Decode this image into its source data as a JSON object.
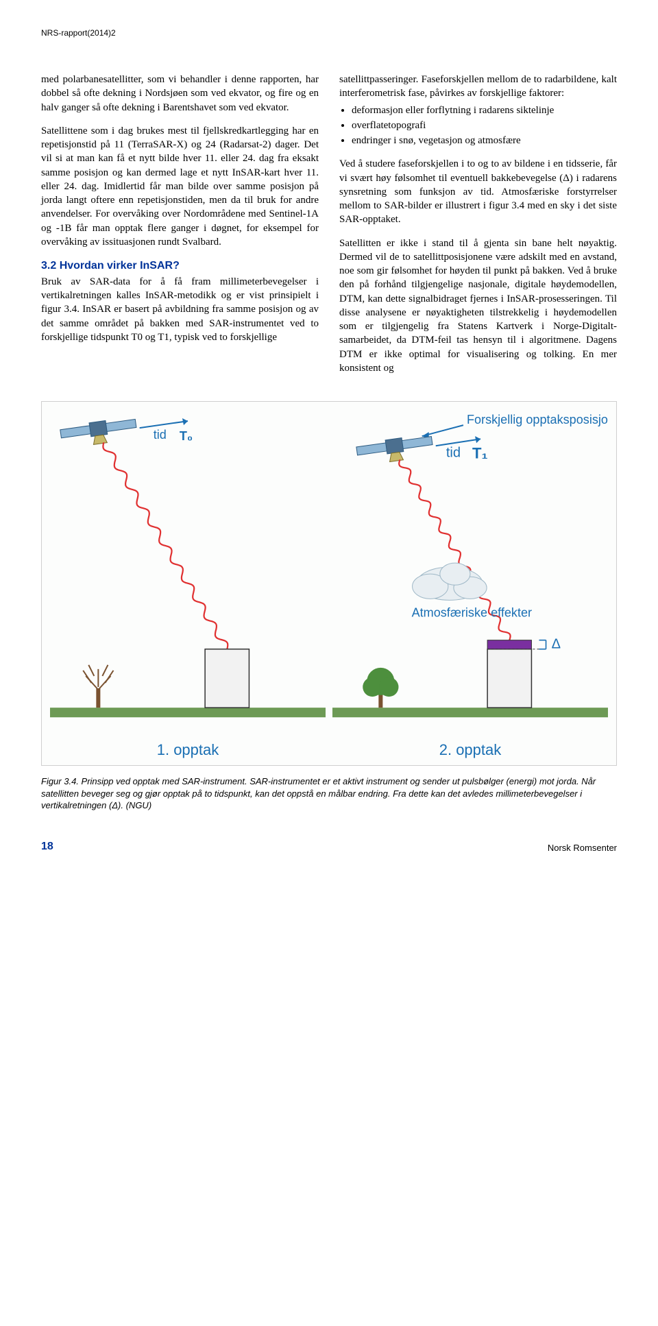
{
  "header": {
    "report_label": "NRS-rapport(2014)2"
  },
  "left_column": {
    "p1": "med polarbanesatellitter, som vi behandler i denne rapporten, har dobbel så ofte dekning i Nordsjøen som ved ekvator, og fire og en halv ganger så ofte dekning i Barentshavet som ved ekvator.",
    "p2": "Satellittene som i dag brukes mest til fjellskredkartlegging har en repetisjonstid på 11 (TerraSAR-X) og 24 (Radarsat-2) dager. Det vil si at man kan få et nytt bilde hver 11. eller 24. dag fra eksakt samme posisjon og kan dermed lage et nytt InSAR-kart hver 11. eller 24. dag. Imidlertid får man bilde over samme posisjon på jorda langt oftere enn repetisjonstiden, men da til bruk for andre anvendelser. For overvåking over Nordområdene med Sentinel-1A og -1B får man opptak flere ganger i døgnet, for eksempel for overvåking av issituasjonen rundt Svalbard.",
    "h1": "3.2 Hvordan virker InSAR?",
    "p3": "Bruk av SAR-data for å få fram millimeterbevegelser i vertikalretningen kalles InSAR-metodikk og er vist prinsipielt i figur 3.4. InSAR er basert på avbildning fra samme posisjon og av det samme området på bakken med SAR-instrumentet ved to forskjellige tidspunkt T0 og T1, typisk ved to forskjellige"
  },
  "right_column": {
    "p1": "satellittpasseringer. Faseforskjellen mellom de to radarbildene, kalt interferometrisk fase, påvirkes av forskjellige faktorer:",
    "bullets": [
      "deformasjon eller forflytning i radarens siktelinje",
      "overflatetopografi",
      "endringer i snø, vegetasjon og atmosfære"
    ],
    "p2": "Ved å studere faseforskjellen i to og to av bildene i en tidsserie, får vi svært høy følsomhet til eventuell bakkebevegelse (Δ) i radarens synsretning som funksjon av tid. Atmosfæriske forstyrrelser mellom to SAR-bilder er illustrert i figur 3.4 med en sky i det siste SAR-opptaket.",
    "p3": "Satellitten er ikke i stand til å gjenta sin bane helt nøyaktig. Dermed vil de to satellittposisjonene være adskilt med en avstand, noe som gir følsomhet for høyden til punkt på bakken. Ved å bruke den på forhånd tilgjengelige nasjonale, digitale høydemodellen, DTM, kan dette signalbidraget fjernes i InSAR-prosesseringen. Til disse analysene er nøyaktigheten tilstrekkelig i høydemodellen som er tilgjengelig fra Statens Kartverk i Norge-Digitalt-samarbeidet, da DTM-feil tas hensyn til i algoritmene. Dagens DTM er ikke optimal for visualisering og tolking. En mer konsistent og"
  },
  "figure": {
    "type": "infographic",
    "background_color": "#fcfdfc",
    "border_color": "#cfcfcf",
    "annot_color": "#1a6fb3",
    "annot_fontsize": 18,
    "panel1": {
      "label": "1. opptak",
      "annot_tid": "tid",
      "annot_t0": "T₀",
      "satellite_body": "#4b6f8f",
      "panel_wing": "#8fb7d6",
      "beam_color": "#e03030",
      "beam_width": 2.2,
      "beam_sinusoid_amp": 5,
      "beam_sinusoid_cycles": 11,
      "tree_trunk": "#7a5230",
      "tree_crown": "#4d8f3d",
      "ground_color": "#6d9a55",
      "building_fill": "#f2f2f2",
      "building_stroke": "#333333"
    },
    "panel2": {
      "label": "2. opptak",
      "annot_tid": "tid",
      "annot_t1": "T₁",
      "annot_forskjellig": "Forskjellig opptaksposisjon",
      "annot_atmos": "Atmosfæriske effekter",
      "annot_delta": "Δ",
      "satellite_body": "#4b6f8f",
      "panel_wing": "#8fb7d6",
      "beam_color": "#e03030",
      "beam_width": 2.2,
      "cloud_fill": "#e8eef2",
      "cloud_stroke": "#9fb8c7",
      "tree_trunk": "#7a5230",
      "tree_crown": "#4d8f3d",
      "ground_color": "#6d9a55",
      "building_fill": "#f2f2f2",
      "building_top": "#7a2fa0",
      "building_stroke": "#333333",
      "arrow_color": "#1a6fb3"
    },
    "caption": "Figur 3.4. Prinsipp ved opptak med SAR-instrument. SAR-instrumentet er et aktivt instrument og sender ut pulsbølger (energi) mot jorda. Når satellitten beveger seg og gjør opptak på to tidspunkt, kan det oppstå en målbar endring. Fra dette kan det avledes millimeterbevegelser i vertikalretningen (Δ). (NGU)"
  },
  "footer": {
    "page": "18",
    "publisher": "Norsk Romsenter"
  }
}
